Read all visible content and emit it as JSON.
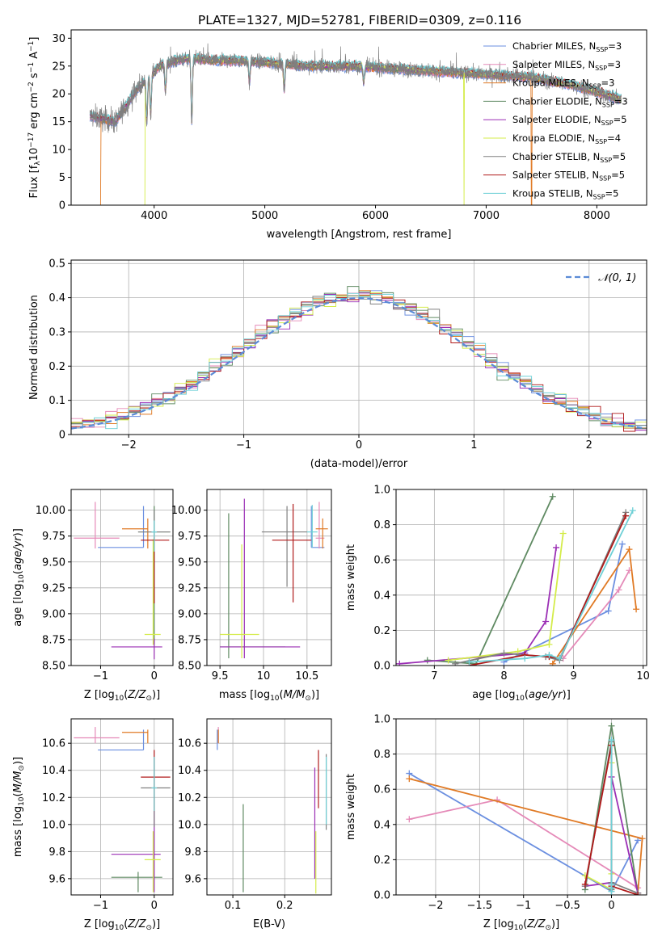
{
  "figure_title": "PLATE=1327, MJD=52781, FIBERID=0309, z=0.116",
  "colors": {
    "Chabrier MILES": "#6b8fe0",
    "Salpeter MILES": "#e58ab8",
    "Kroupa MILES": "#e07a25",
    "Chabrier ELODIE": "#5f8a62",
    "Salpeter ELODIE": "#9b2fb5",
    "Kroupa ELODIE": "#d4ec4a",
    "Chabrier STELIB": "#808080",
    "Salpeter STELIB": "#b01a1a",
    "Kroupa STELIB": "#6fd0d6",
    "data": "#7f7f7f",
    "normal": "#5b8bd6",
    "grid": "#b0b0b0"
  },
  "chart_data": [
    {
      "id": "spectrum",
      "type": "line",
      "xlabel": "wavelength [Angstrom, rest frame]",
      "ylabel": "Flux [f_λ10^-17 erg cm^-2 s^-1 A^-1]",
      "xlim": [
        3250,
        8450
      ],
      "ylim": [
        0,
        31.5
      ],
      "xticks": [
        4000,
        5000,
        6000,
        7000,
        8000
      ],
      "yticks": [
        0,
        5,
        10,
        15,
        20,
        25,
        30
      ],
      "grid": false,
      "legend_position": "upper-right",
      "legend": [
        {
          "name": "Chabrier MILES",
          "nssp": "3"
        },
        {
          "name": "Salpeter MILES",
          "nssp": "3"
        },
        {
          "name": "Kroupa MILES",
          "nssp": "3"
        },
        {
          "name": "Chabrier ELODIE",
          "nssp": "3"
        },
        {
          "name": "Salpeter ELODIE",
          "nssp": "5"
        },
        {
          "name": "Kroupa ELODIE",
          "nssp": "4"
        },
        {
          "name": "Chabrier STELIB",
          "nssp": "5"
        },
        {
          "name": "Salpeter STELIB",
          "nssp": "5"
        },
        {
          "name": "Kroupa STELIB",
          "nssp": "5"
        }
      ],
      "continuum": {
        "x": [
          3420,
          3550,
          3650,
          3750,
          3850,
          3950,
          4050,
          4200,
          4350,
          4500,
          4800,
          5100,
          5400,
          5800,
          6200,
          6600,
          7000,
          7400,
          7800,
          8220
        ],
        "y": [
          16,
          15.5,
          15,
          18,
          21,
          23,
          25,
          26,
          26.5,
          26,
          26,
          25.5,
          25,
          25,
          24.5,
          24,
          23.5,
          23,
          21.5,
          19
        ]
      },
      "absorption_lines": [
        {
          "x": 3934,
          "depth": 8
        },
        {
          "x": 3969,
          "depth": 7
        },
        {
          "x": 4102,
          "depth": 5
        },
        {
          "x": 4340,
          "depth": 12
        },
        {
          "x": 4861,
          "depth": 4
        },
        {
          "x": 5175,
          "depth": 5
        },
        {
          "x": 5893,
          "depth": 3
        }
      ],
      "noise_amplitude": 1.3,
      "model_dropouts": [
        {
          "series": "Kroupa MILES",
          "x": [
            3520,
            7410
          ]
        },
        {
          "series": "Kroupa ELODIE",
          "x": [
            3920,
            6800
          ]
        }
      ]
    },
    {
      "id": "residuals",
      "type": "histogram",
      "xlabel": "(data-model)/error",
      "ylabel": "Normed distribution",
      "xlim": [
        -2.5,
        2.5
      ],
      "ylim": [
        0,
        0.51
      ],
      "xticks": [
        -2,
        -1,
        0,
        1,
        2
      ],
      "yticks": [
        0.0,
        0.1,
        0.2,
        0.3,
        0.4,
        0.5
      ],
      "grid": true,
      "bin_width": 0.1,
      "reference_curve": {
        "label": "N(0,1)",
        "mean": 0,
        "sigma": 1,
        "style": "dashed"
      },
      "legend_position": "upper-right"
    },
    {
      "id": "age_vs_Z",
      "type": "errorbar",
      "xlabel": "Z [log10(Z/Z⊙)]",
      "ylabel": "age [log10(age/yr)]",
      "xlim": [
        -1.55,
        0.35
      ],
      "ylim": [
        8.5,
        10.2
      ],
      "xticks": [
        -1,
        0
      ],
      "yticks": [
        8.5,
        8.75,
        9.0,
        9.25,
        9.5,
        9.75,
        10.0
      ],
      "grid": true,
      "points": [
        {
          "series": "Chabrier MILES",
          "x": -0.2,
          "xlo": -1.05,
          "xhi": -0.2,
          "y": 9.64,
          "ylo": 9.64,
          "yhi": 10.04
        },
        {
          "series": "Salpeter MILES",
          "x": -1.1,
          "xlo": -1.5,
          "xhi": -0.65,
          "y": 9.73,
          "ylo": 9.63,
          "yhi": 10.08
        },
        {
          "series": "Kroupa MILES",
          "x": -0.12,
          "xlo": -0.6,
          "xhi": -0.12,
          "y": 9.82,
          "ylo": 9.63,
          "yhi": 9.92
        },
        {
          "series": "Chabrier ELODIE",
          "x": 0.0,
          "xlo": -0.3,
          "xhi": 0.3,
          "y": 9.79,
          "ylo": 8.7,
          "yhi": 10.04
        },
        {
          "series": "Salpeter ELODIE",
          "x": 0.0,
          "xlo": -0.8,
          "xhi": 0.15,
          "y": 8.68,
          "ylo": 8.56,
          "yhi": 8.76
        },
        {
          "series": "Kroupa ELODIE",
          "x": -0.02,
          "xlo": -0.18,
          "xhi": 0.12,
          "y": 8.8,
          "ylo": 8.7,
          "yhi": 9.72
        },
        {
          "series": "Chabrier STELIB",
          "x": 0.0,
          "xlo": -0.3,
          "xhi": 0.3,
          "y": 9.79,
          "ylo": 9.6,
          "yhi": 10.0
        },
        {
          "series": "Salpeter STELIB",
          "x": 0.0,
          "xlo": -0.25,
          "xhi": 0.28,
          "y": 9.71,
          "ylo": 9.1,
          "yhi": 9.74
        },
        {
          "series": "Kroupa STELIB",
          "x": 0.0,
          "xlo": -0.05,
          "xhi": 0.05,
          "y": 9.79,
          "ylo": 9.6,
          "yhi": 9.9
        }
      ]
    },
    {
      "id": "age_vs_mass",
      "type": "errorbar",
      "xlabel": "mass [log10(M/M⊙)]",
      "ylabel": "",
      "xlim": [
        9.35,
        10.78
      ],
      "ylim": [
        8.5,
        10.2
      ],
      "xticks": [
        9.5,
        10.0,
        10.5
      ],
      "yticks": [
        8.5,
        8.75,
        9.0,
        9.25,
        9.5,
        9.75,
        10.0
      ],
      "grid": true,
      "points": [
        {
          "series": "Chabrier MILES",
          "x": 10.55,
          "xlo": 10.55,
          "xhi": 10.7,
          "y": 9.64,
          "ylo": 9.64,
          "yhi": 10.04
        },
        {
          "series": "Salpeter MILES",
          "x": 10.64,
          "xlo": 10.6,
          "xhi": 10.7,
          "y": 9.73,
          "ylo": 9.63,
          "yhi": 10.08
        },
        {
          "series": "Kroupa MILES",
          "x": 10.68,
          "xlo": 10.6,
          "xhi": 10.74,
          "y": 9.82,
          "ylo": 9.63,
          "yhi": 9.92
        },
        {
          "series": "Chabrier ELODIE",
          "x": 9.6,
          "xlo": 9.5,
          "xhi": 10.25,
          "y": 8.68,
          "ylo": 8.57,
          "yhi": 9.97
        },
        {
          "series": "Salpeter ELODIE",
          "x": 9.78,
          "xlo": 9.5,
          "xhi": 10.42,
          "y": 8.68,
          "ylo": 8.57,
          "yhi": 10.11
        },
        {
          "series": "Kroupa ELODIE",
          "x": 9.75,
          "xlo": 9.5,
          "xhi": 9.95,
          "y": 8.8,
          "ylo": 8.57,
          "yhi": 9.67
        },
        {
          "series": "Chabrier STELIB",
          "x": 10.27,
          "xlo": 9.98,
          "xhi": 10.5,
          "y": 9.79,
          "ylo": 9.26,
          "yhi": 10.04
        },
        {
          "series": "Salpeter STELIB",
          "x": 10.34,
          "xlo": 10.1,
          "xhi": 10.55,
          "y": 9.71,
          "ylo": 9.11,
          "yhi": 10.06
        },
        {
          "series": "Kroupa STELIB",
          "x": 10.56,
          "xlo": 10.5,
          "xhi": 10.62,
          "y": 9.79,
          "ylo": 9.64,
          "yhi": 10.05
        }
      ]
    },
    {
      "id": "weight_vs_age",
      "type": "line",
      "xlabel": "age [log10(age/yr)]",
      "ylabel": "mass weight",
      "xlim": [
        6.45,
        10.05
      ],
      "ylim": [
        0,
        1.0
      ],
      "xticks": [
        7,
        8,
        9,
        10
      ],
      "yticks": [
        0.0,
        0.2,
        0.4,
        0.6,
        0.8,
        1.0
      ],
      "grid": true,
      "series": [
        {
          "name": "Chabrier MILES",
          "x": [
            8.0,
            9.5,
            9.7
          ],
          "y": [
            0.02,
            0.31,
            0.69
          ]
        },
        {
          "name": "Salpeter MILES",
          "x": [
            8.85,
            9.65,
            9.8
          ],
          "y": [
            0.04,
            0.43,
            0.54
          ]
        },
        {
          "name": "Kroupa MILES",
          "x": [
            8.7,
            9.8,
            9.9
          ],
          "y": [
            0.01,
            0.66,
            0.32
          ]
        },
        {
          "name": "Chabrier ELODIE",
          "x": [
            6.9,
            7.6,
            8.7
          ],
          "y": [
            0.03,
            0.01,
            0.96
          ]
        },
        {
          "name": "Salpeter ELODIE",
          "x": [
            6.5,
            8.3,
            8.6,
            8.75
          ],
          "y": [
            0.01,
            0.07,
            0.25,
            0.67
          ]
        },
        {
          "name": "Kroupa ELODIE",
          "x": [
            7.2,
            8.2,
            8.65,
            8.85
          ],
          "y": [
            0.03,
            0.08,
            0.12,
            0.75
          ]
        },
        {
          "name": "Chabrier STELIB",
          "x": [
            7.3,
            8.0,
            8.6,
            8.8,
            9.75
          ],
          "y": [
            0.01,
            0.07,
            0.05,
            0.03,
            0.87
          ]
        },
        {
          "name": "Salpeter STELIB",
          "x": [
            7.5,
            8.3,
            8.65,
            8.8,
            9.75
          ],
          "y": [
            0.0,
            0.06,
            0.05,
            0.04,
            0.85
          ]
        },
        {
          "name": "Kroupa STELIB",
          "x": [
            7.5,
            8.3,
            8.65,
            8.8,
            9.85
          ],
          "y": [
            0.02,
            0.04,
            0.06,
            0.04,
            0.88
          ]
        }
      ]
    },
    {
      "id": "mass_vs_Z",
      "type": "errorbar",
      "xlabel": "Z [log10(Z/Z⊙)]",
      "ylabel": "mass [log10(M/M⊙)]",
      "xlim": [
        -1.55,
        0.35
      ],
      "ylim": [
        9.48,
        10.78
      ],
      "xticks": [
        -1,
        0
      ],
      "yticks": [
        9.6,
        9.8,
        10.0,
        10.2,
        10.4,
        10.6
      ],
      "grid": true,
      "points": [
        {
          "series": "Chabrier MILES",
          "x": -0.2,
          "xlo": -1.05,
          "xhi": -0.2,
          "y": 10.55,
          "ylo": 10.55,
          "yhi": 10.7
        },
        {
          "series": "Salpeter MILES",
          "x": -1.1,
          "xlo": -1.5,
          "xhi": -0.65,
          "y": 10.64,
          "ylo": 10.6,
          "yhi": 10.72
        },
        {
          "series": "Kroupa MILES",
          "x": -0.12,
          "xlo": -0.6,
          "xhi": -0.12,
          "y": 10.68,
          "ylo": 10.6,
          "yhi": 10.7
        },
        {
          "series": "Chabrier ELODIE",
          "x": -0.3,
          "xlo": -0.8,
          "xhi": 0.15,
          "y": 9.61,
          "ylo": 9.5,
          "yhi": 9.65
        },
        {
          "series": "Salpeter ELODIE",
          "x": 0.0,
          "xlo": -0.8,
          "xhi": 0.12,
          "y": 9.78,
          "ylo": 9.5,
          "yhi": 10.1
        },
        {
          "series": "Kroupa ELODIE",
          "x": -0.02,
          "xlo": -0.18,
          "xhi": 0.12,
          "y": 9.74,
          "ylo": 9.5,
          "yhi": 9.95
        },
        {
          "series": "Chabrier STELIB",
          "x": 0.0,
          "xlo": -0.25,
          "xhi": 0.3,
          "y": 10.27,
          "ylo": 9.98,
          "yhi": 10.5
        },
        {
          "series": "Salpeter STELIB",
          "x": 0.0,
          "xlo": -0.25,
          "xhi": 0.3,
          "y": 10.35,
          "ylo": 10.1,
          "yhi": 10.55
        },
        {
          "series": "Kroupa STELIB",
          "x": 0.0,
          "xlo": -0.05,
          "xhi": 0.05,
          "y": 10.27,
          "ylo": 10.1,
          "yhi": 10.5
        }
      ]
    },
    {
      "id": "mass_vs_ebv",
      "type": "errorbar",
      "xlabel": "E(B-V)",
      "ylabel": "",
      "xlim": [
        0.05,
        0.29
      ],
      "ylim": [
        9.48,
        10.78
      ],
      "xticks": [
        0.1,
        0.2
      ],
      "yticks": [
        9.6,
        9.8,
        10.0,
        10.2,
        10.4,
        10.6
      ],
      "grid": true,
      "points": [
        {
          "series": "Chabrier MILES",
          "x": 0.07,
          "y": 10.6,
          "ylo": 10.55,
          "yhi": 10.7
        },
        {
          "series": "Salpeter MILES",
          "x": 0.072,
          "y": 10.64,
          "ylo": 10.6,
          "yhi": 10.72
        },
        {
          "series": "Kroupa MILES",
          "x": 0.072,
          "y": 10.68,
          "ylo": 10.6,
          "yhi": 10.7
        },
        {
          "series": "Chabrier ELODIE",
          "x": 0.12,
          "y": 9.8,
          "ylo": 9.5,
          "yhi": 10.15
        },
        {
          "series": "Salpeter ELODIE",
          "x": 0.258,
          "y": 10.0,
          "ylo": 9.6,
          "yhi": 10.42
        },
        {
          "series": "Kroupa ELODIE",
          "x": 0.26,
          "y": 9.75,
          "ylo": 9.49,
          "yhi": 9.95
        },
        {
          "series": "Chabrier STELIB",
          "x": 0.28,
          "y": 10.27,
          "ylo": 9.96,
          "yhi": 10.52
        },
        {
          "series": "Salpeter STELIB",
          "x": 0.265,
          "y": 10.35,
          "ylo": 10.12,
          "yhi": 10.55
        },
        {
          "series": "Kroupa STELIB",
          "x": 0.28,
          "y": 10.27,
          "ylo": 10.0,
          "yhi": 10.5
        }
      ]
    },
    {
      "id": "weight_vs_Z",
      "type": "line",
      "xlabel": "Z [log10(Z/Z⊙)]",
      "ylabel": "mass weight",
      "xlim": [
        -2.45,
        0.4
      ],
      "ylim": [
        0,
        1.0
      ],
      "xticks": [
        -2.0,
        -1.5,
        -1.0,
        -0.5,
        0.0
      ],
      "yticks": [
        0.0,
        0.2,
        0.4,
        0.6,
        0.8,
        1.0
      ],
      "grid": true,
      "series": [
        {
          "name": "Chabrier MILES",
          "x": [
            -2.3,
            0.0,
            0.3
          ],
          "y": [
            0.69,
            0.02,
            0.31
          ]
        },
        {
          "name": "Salpeter MILES",
          "x": [
            -2.3,
            -1.3,
            0.3
          ],
          "y": [
            0.43,
            0.54,
            0.04
          ]
        },
        {
          "name": "Kroupa MILES",
          "x": [
            -2.3,
            0.35,
            0.3
          ],
          "y": [
            0.66,
            0.32,
            0.01
          ]
        },
        {
          "name": "Chabrier ELODIE",
          "x": [
            -0.3,
            0.0,
            0.3
          ],
          "y": [
            0.03,
            0.96,
            0.01
          ]
        },
        {
          "name": "Salpeter ELODIE",
          "x": [
            -0.3,
            0.0,
            0.0,
            0.3
          ],
          "y": [
            0.05,
            0.07,
            0.67,
            0.01
          ]
        },
        {
          "name": "Kroupa ELODIE",
          "x": [
            -0.3,
            0.0,
            0.0,
            0.0
          ],
          "y": [
            0.11,
            0.03,
            0.75,
            0.12
          ]
        },
        {
          "name": "Chabrier STELIB",
          "x": [
            -0.3,
            0.0,
            0.0,
            0.0,
            0.3
          ],
          "y": [
            0.05,
            0.87,
            0.03,
            0.07,
            0.01
          ]
        },
        {
          "name": "Salpeter STELIB",
          "x": [
            -0.3,
            0.0,
            0.0,
            0.0,
            0.3
          ],
          "y": [
            0.06,
            0.85,
            0.04,
            0.05,
            0.0
          ]
        },
        {
          "name": "Kroupa STELIB",
          "x": [
            0.0,
            0.0,
            0.0,
            0.0,
            0.0
          ],
          "y": [
            0.02,
            0.88,
            0.04,
            0.06,
            0.04
          ]
        }
      ]
    }
  ]
}
